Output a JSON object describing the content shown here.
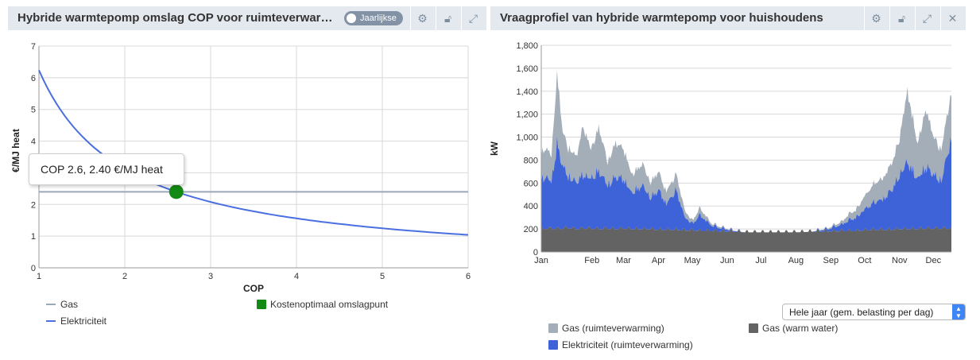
{
  "left_panel": {
    "title": "Hybride warmtepomp omslag COP voor ruimteverwar…",
    "toggle_label": "Jaarlijkse",
    "buttons": [
      "settings-icon",
      "unlock-icon",
      "expand-icon"
    ],
    "tooltip": "COP 2.6, 2.40 €/MJ heat"
  },
  "right_panel": {
    "title": "Vraagprofiel van hybride warmtepomp voor huishoudens",
    "buttons": [
      "settings-icon",
      "unlock-icon",
      "expand-icon",
      "close-icon"
    ],
    "select_value": "Hele jaar (gem. belasting per dag)"
  },
  "chart_data": [
    {
      "type": "line",
      "xlabel": "COP",
      "ylabel": "€/MJ heat",
      "xlim": [
        1,
        6
      ],
      "ylim": [
        0,
        7
      ],
      "x_ticks": [
        "1",
        "2",
        "3",
        "4",
        "5",
        "6"
      ],
      "y_ticks": [
        "0",
        "1",
        "2",
        "3",
        "4",
        "5",
        "6",
        "7"
      ],
      "grid": true,
      "series": [
        {
          "name": "Gas",
          "color": "#9aa8b8",
          "x": [
            1,
            6
          ],
          "y": [
            2.4,
            2.4
          ]
        },
        {
          "name": "Elektriciteit",
          "color": "#4a6fe0",
          "formula": "6.24 / COP",
          "x": [
            1,
            1.5,
            2,
            2.5,
            3,
            3.5,
            4,
            4.5,
            5,
            5.5,
            6
          ],
          "y": [
            6.24,
            4.16,
            3.12,
            2.5,
            2.08,
            1.78,
            1.56,
            1.39,
            1.25,
            1.13,
            1.04
          ]
        }
      ],
      "points": [
        {
          "name": "Kostenoptimaal omslagpunt",
          "color": "#138a13",
          "x": 2.6,
          "y": 2.4
        }
      ],
      "legend_position": "bottom"
    },
    {
      "type": "area",
      "stacked": true,
      "ylabel": "kW",
      "ylim": [
        0,
        1800
      ],
      "y_ticks": [
        "0",
        "200",
        "400",
        "600",
        "800",
        "1,000",
        "1,200",
        "1,400",
        "1,600",
        "1,800"
      ],
      "x_ticks": [
        "Jan",
        "Feb",
        "Mar",
        "Apr",
        "May",
        "Jun",
        "Jul",
        "Aug",
        "Sep",
        "Oct",
        "Nov",
        "Dec"
      ],
      "grid": true,
      "x_days": [
        1,
        5,
        10,
        15,
        20,
        25,
        32,
        38,
        45,
        52,
        60,
        67,
        74,
        81,
        91,
        98,
        105,
        112,
        121,
        128,
        135,
        142,
        152,
        160,
        170,
        182,
        195,
        210,
        225,
        240,
        255,
        268,
        274,
        281,
        288,
        296,
        305,
        312,
        319,
        326,
        335,
        342,
        349,
        356,
        365
      ],
      "series": [
        {
          "name": "Gas (warm water)",
          "color": "#636363",
          "values": [
            190,
            200,
            200,
            195,
            200,
            205,
            195,
            200,
            200,
            195,
            200,
            195,
            200,
            195,
            195,
            195,
            190,
            190,
            190,
            185,
            185,
            180,
            180,
            175,
            175,
            170,
            170,
            170,
            170,
            175,
            175,
            180,
            180,
            180,
            185,
            190,
            190,
            190,
            195,
            195,
            195,
            200,
            200,
            200,
            200
          ]
        },
        {
          "name": "Elektriciteit (ruimteverwarming)",
          "color": "#3e62d8",
          "values": [
            480,
            500,
            450,
            820,
            600,
            500,
            450,
            520,
            480,
            560,
            420,
            500,
            480,
            350,
            420,
            300,
            380,
            250,
            380,
            130,
            60,
            150,
            50,
            30,
            10,
            0,
            0,
            0,
            0,
            0,
            20,
            60,
            100,
            130,
            200,
            260,
            300,
            380,
            520,
            650,
            480,
            600,
            520,
            460,
            880
          ]
        },
        {
          "name": "Gas (ruimteverwarming)",
          "color": "#a4aeb9",
          "values": [
            250,
            280,
            260,
            680,
            340,
            280,
            250,
            470,
            290,
            420,
            230,
            330,
            300,
            180,
            210,
            150,
            180,
            120,
            160,
            70,
            30,
            70,
            20,
            15,
            5,
            0,
            0,
            0,
            0,
            0,
            10,
            30,
            60,
            80,
            130,
            180,
            210,
            260,
            360,
            700,
            340,
            560,
            380,
            300,
            460
          ]
        }
      ],
      "legend_position": "bottom"
    }
  ]
}
